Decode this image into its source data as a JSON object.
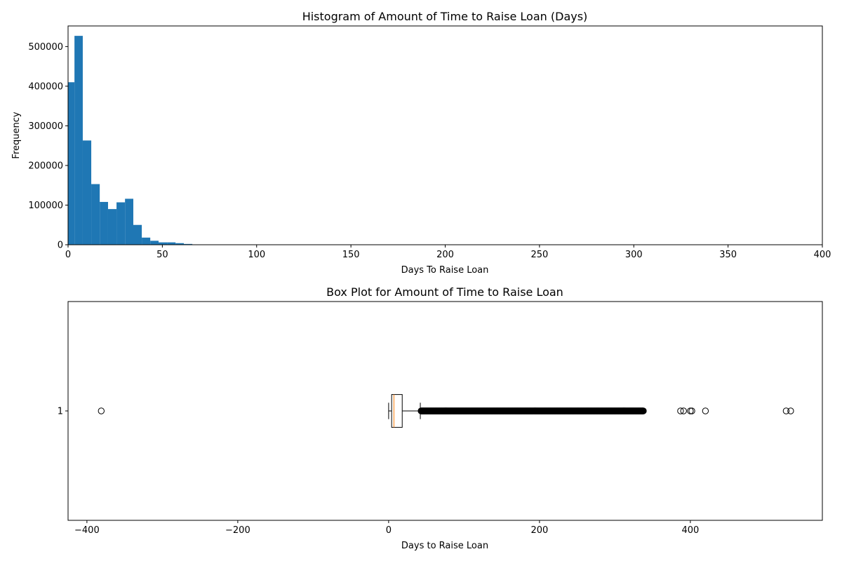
{
  "chart_data": [
    {
      "type": "bar",
      "subtype": "histogram",
      "title": "Histogram of Amount of Time to Raise Loan (Days)",
      "xlabel": "Days To Raise Loan",
      "ylabel": "Frequency",
      "xlim": [
        0,
        400
      ],
      "ylim": [
        0,
        552000
      ],
      "xticks": [
        0,
        50,
        100,
        150,
        200,
        250,
        300,
        350,
        400
      ],
      "xtick_labels": [
        "0",
        "50",
        "100",
        "150",
        "200",
        "250",
        "300",
        "350",
        "400"
      ],
      "yticks": [
        0,
        100000,
        200000,
        300000,
        400000,
        500000
      ],
      "ytick_labels": [
        "0",
        "100000",
        "200000",
        "300000",
        "400000",
        "500000"
      ],
      "grid": false,
      "bar_color": "#1f77b4",
      "bin_width": 4.5,
      "bins": [
        {
          "x0": 0,
          "x1": 3.4,
          "count": 410000
        },
        {
          "x0": 3.4,
          "x1": 7.8,
          "count": 527000
        },
        {
          "x0": 7.8,
          "x1": 12.3,
          "count": 263000
        },
        {
          "x0": 12.3,
          "x1": 16.8,
          "count": 153000
        },
        {
          "x0": 16.8,
          "x1": 21.2,
          "count": 108000
        },
        {
          "x0": 21.2,
          "x1": 25.7,
          "count": 90000
        },
        {
          "x0": 25.7,
          "x1": 30.2,
          "count": 107000
        },
        {
          "x0": 30.2,
          "x1": 34.6,
          "count": 116000
        },
        {
          "x0": 34.6,
          "x1": 39.1,
          "count": 50000
        },
        {
          "x0": 39.1,
          "x1": 43.6,
          "count": 18000
        },
        {
          "x0": 43.6,
          "x1": 48.0,
          "count": 10000
        },
        {
          "x0": 48.0,
          "x1": 52.5,
          "count": 6000
        },
        {
          "x0": 52.5,
          "x1": 57.0,
          "count": 6000
        },
        {
          "x0": 57.0,
          "x1": 61.4,
          "count": 4000
        },
        {
          "x0": 61.4,
          "x1": 65.9,
          "count": 2000
        },
        {
          "x0": 65.9,
          "x1": 70.3,
          "count": 800
        },
        {
          "x0": 70.3,
          "x1": 74.8,
          "count": 300
        }
      ]
    },
    {
      "type": "box",
      "title": "Box Plot for Amount of Time to Raise Loan",
      "xlabel": "Days to Raise Loan",
      "ylabel": "",
      "orientation": "horizontal",
      "xlim": [
        -425,
        575
      ],
      "ylim": [
        0.5,
        1.5
      ],
      "xticks": [
        -400,
        -200,
        0,
        200,
        400
      ],
      "xtick_labels": [
        "−400",
        "−200",
        "0",
        "200",
        "400"
      ],
      "yticks": [
        1
      ],
      "ytick_labels": [
        "1"
      ],
      "grid": false,
      "median_color": "#ff7f0e",
      "box": {
        "position": 1,
        "whisker_low": 0,
        "q1": 4,
        "median": 7,
        "q3": 18,
        "whisker_high": 42
      },
      "outlier_range": [
        43,
        338
      ],
      "outliers": [
        -381,
        387,
        391,
        400,
        402,
        420,
        527,
        533
      ]
    }
  ]
}
